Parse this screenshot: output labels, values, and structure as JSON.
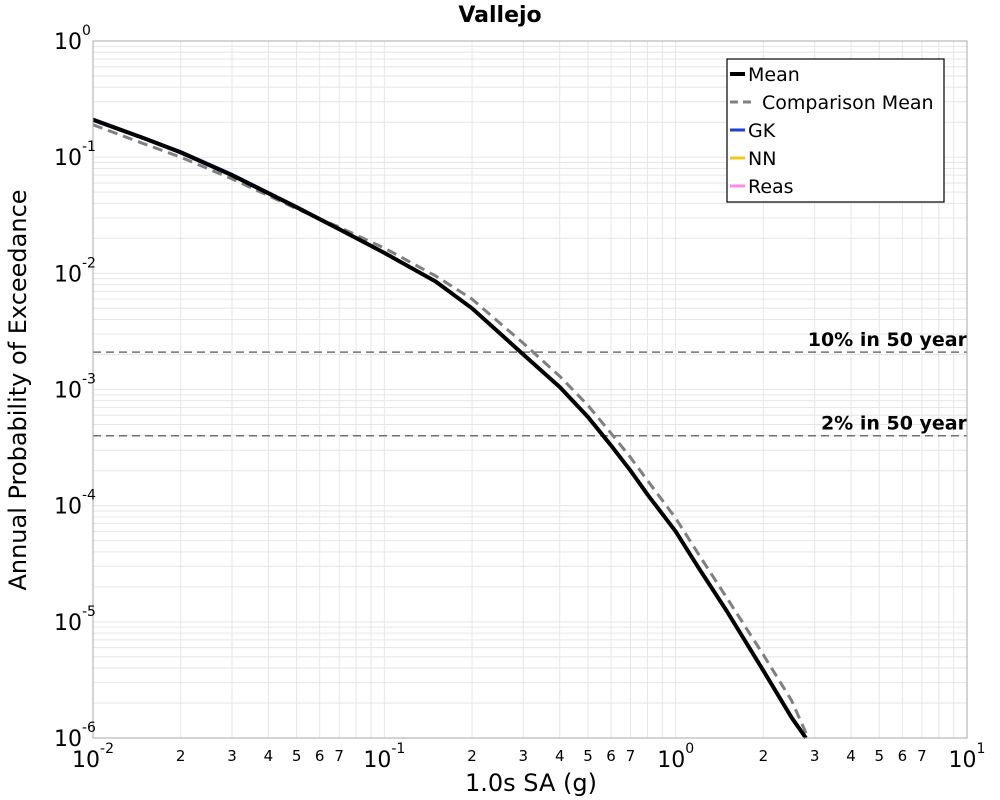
{
  "chart_data": {
    "type": "line",
    "title": "Vallejo",
    "xlabel": "1.0s SA (g)",
    "ylabel": "Annual Probability of Exceedance",
    "x_scale": "log",
    "y_scale": "log",
    "xlim": [
      0.01,
      10
    ],
    "ylim": [
      1e-06,
      1
    ],
    "grid": true,
    "legend_position": "top-right",
    "x_major_ticks": [
      {
        "value": 0.01,
        "base": "10",
        "exp": "-2"
      },
      {
        "value": 0.1,
        "base": "10",
        "exp": "-1"
      },
      {
        "value": 1,
        "base": "10",
        "exp": "0"
      },
      {
        "value": 10,
        "base": "10",
        "exp": "1"
      }
    ],
    "x_minor_ticks": [
      {
        "value": 0.02,
        "label": "2"
      },
      {
        "value": 0.03,
        "label": "3"
      },
      {
        "value": 0.04,
        "label": "4"
      },
      {
        "value": 0.05,
        "label": "5"
      },
      {
        "value": 0.06,
        "label": "6"
      },
      {
        "value": 0.07,
        "label": "7"
      },
      {
        "value": 0.2,
        "label": "2"
      },
      {
        "value": 0.3,
        "label": "3"
      },
      {
        "value": 0.4,
        "label": "4"
      },
      {
        "value": 0.5,
        "label": "5"
      },
      {
        "value": 0.6,
        "label": "6"
      },
      {
        "value": 0.7,
        "label": "7"
      },
      {
        "value": 2,
        "label": "2"
      },
      {
        "value": 3,
        "label": "3"
      },
      {
        "value": 4,
        "label": "4"
      },
      {
        "value": 5,
        "label": "5"
      },
      {
        "value": 6,
        "label": "6"
      },
      {
        "value": 7,
        "label": "7"
      }
    ],
    "y_major_ticks": [
      {
        "value": 1,
        "base": "10",
        "exp": "0"
      },
      {
        "value": 0.1,
        "base": "10",
        "exp": "-1"
      },
      {
        "value": 0.01,
        "base": "10",
        "exp": "-2"
      },
      {
        "value": 0.001,
        "base": "10",
        "exp": "-3"
      },
      {
        "value": 0.0001,
        "base": "10",
        "exp": "-4"
      },
      {
        "value": 1e-05,
        "base": "10",
        "exp": "-5"
      },
      {
        "value": 1e-06,
        "base": "10",
        "exp": "-6"
      }
    ],
    "series": [
      {
        "name": "Mean",
        "color": "#000000",
        "style": "solid",
        "width": 4,
        "x": [
          0.01,
          0.015,
          0.02,
          0.03,
          0.05,
          0.07,
          0.1,
          0.15,
          0.2,
          0.3,
          0.4,
          0.5,
          0.6,
          0.7,
          0.8,
          1.0,
          1.2,
          1.5,
          2.0,
          2.5,
          2.8
        ],
        "y": [
          0.21,
          0.145,
          0.11,
          0.07,
          0.037,
          0.024,
          0.015,
          0.0085,
          0.005,
          0.002,
          0.00105,
          0.00058,
          0.00033,
          0.0002,
          0.000125,
          6e-05,
          2.9e-05,
          1.23e-05,
          3.8e-06,
          1.5e-06,
          9e-07
        ]
      },
      {
        "name": "Comparison Mean",
        "color": "#808080",
        "style": "dashed",
        "width": 3,
        "x": [
          0.01,
          0.015,
          0.02,
          0.03,
          0.05,
          0.07,
          0.1,
          0.15,
          0.2,
          0.3,
          0.4,
          0.5,
          0.6,
          0.7,
          0.8,
          1.0,
          1.2,
          1.5,
          2.0,
          2.5,
          2.85
        ],
        "y": [
          0.19,
          0.13,
          0.1,
          0.065,
          0.036,
          0.025,
          0.0165,
          0.0095,
          0.006,
          0.0025,
          0.0013,
          0.00073,
          0.00042,
          0.00026,
          0.000165,
          7.8e-05,
          3.8e-05,
          1.6e-05,
          5.2e-06,
          2.1e-06,
          9e-07
        ]
      },
      {
        "name": "GK",
        "color": "#1f3fd6",
        "style": "solid",
        "width": 2,
        "x": [
          0.01,
          0.015,
          0.02,
          0.03,
          0.05,
          0.07,
          0.1
        ],
        "y": [
          0.215,
          0.148,
          0.113,
          0.072,
          0.038,
          0.0245,
          0.015
        ]
      },
      {
        "name": "NN",
        "color": "#f2c81e",
        "style": "solid",
        "width": 2,
        "x": [],
        "y": []
      },
      {
        "name": "Reas",
        "color": "#ff88e0",
        "style": "solid",
        "width": 2,
        "x": [
          0.01,
          0.015,
          0.02,
          0.03,
          0.05,
          0.07,
          0.1
        ],
        "y": [
          0.205,
          0.142,
          0.108,
          0.069,
          0.0365,
          0.0238,
          0.0148
        ]
      }
    ],
    "reference_lines": [
      {
        "label": "10% in 50 year",
        "y": 0.0021,
        "color": "#707070"
      },
      {
        "label": "2% in 50 year",
        "y": 0.0004,
        "color": "#707070"
      }
    ]
  }
}
